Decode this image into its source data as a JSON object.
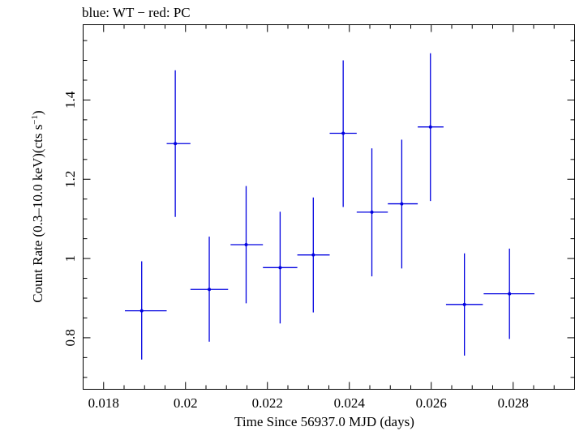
{
  "chart_data": {
    "type": "scatter",
    "title": "blue: WT − red: PC",
    "xlabel": "Time Since 56937.0 MJD (days)",
    "ylabel_main": "Count Rate (0.3–10.0 keV)(cts s",
    "ylabel_sup": "−1",
    "ylabel_end": ")",
    "xlim": [
      0.0175,
      0.0295
    ],
    "ylim": [
      0.67,
      1.59
    ],
    "xticks": [
      0.018,
      0.02,
      0.022,
      0.024,
      0.026,
      0.028
    ],
    "xtick_labels": [
      "0.018",
      "0.02",
      "0.022",
      "0.024",
      "0.026",
      "0.028"
    ],
    "yticks": [
      0.8,
      1.0,
      1.2,
      1.4
    ],
    "ytick_labels": [
      "0.8",
      "1",
      "1.2",
      "1.4"
    ],
    "grid": false,
    "series": [
      {
        "color": "#0000e0",
        "points": [
          {
            "x": 0.01893,
            "xlo": 0.01852,
            "xhi": 0.01954,
            "y": 0.868,
            "ylo": 0.745,
            "yhi": 0.993
          },
          {
            "x": 0.01975,
            "xlo": 0.01954,
            "xhi": 0.02012,
            "y": 1.29,
            "ylo": 1.105,
            "yhi": 1.475
          },
          {
            "x": 0.02058,
            "xlo": 0.02012,
            "xhi": 0.02104,
            "y": 0.922,
            "ylo": 0.79,
            "yhi": 1.055
          },
          {
            "x": 0.02148,
            "xlo": 0.0211,
            "xhi": 0.02189,
            "y": 1.035,
            "ylo": 0.887,
            "yhi": 1.183
          },
          {
            "x": 0.02231,
            "xlo": 0.02189,
            "xhi": 0.02273,
            "y": 0.977,
            "ylo": 0.836,
            "yhi": 1.118
          },
          {
            "x": 0.02312,
            "xlo": 0.02273,
            "xhi": 0.02352,
            "y": 1.009,
            "ylo": 0.864,
            "yhi": 1.154
          },
          {
            "x": 0.02385,
            "xlo": 0.02352,
            "xhi": 0.02418,
            "y": 1.316,
            "ylo": 1.13,
            "yhi": 1.5
          },
          {
            "x": 0.02455,
            "xlo": 0.02418,
            "xhi": 0.02494,
            "y": 1.117,
            "ylo": 0.955,
            "yhi": 1.278
          },
          {
            "x": 0.02528,
            "xlo": 0.02494,
            "xhi": 0.02567,
            "y": 1.138,
            "ylo": 0.975,
            "yhi": 1.3
          },
          {
            "x": 0.02598,
            "xlo": 0.02567,
            "xhi": 0.0263,
            "y": 1.332,
            "ylo": 1.145,
            "yhi": 1.518
          },
          {
            "x": 0.02681,
            "xlo": 0.02636,
            "xhi": 0.02726,
            "y": 0.884,
            "ylo": 0.755,
            "yhi": 1.013
          },
          {
            "x": 0.02791,
            "xlo": 0.02728,
            "xhi": 0.02852,
            "y": 0.911,
            "ylo": 0.797,
            "yhi": 1.025
          }
        ]
      }
    ]
  }
}
